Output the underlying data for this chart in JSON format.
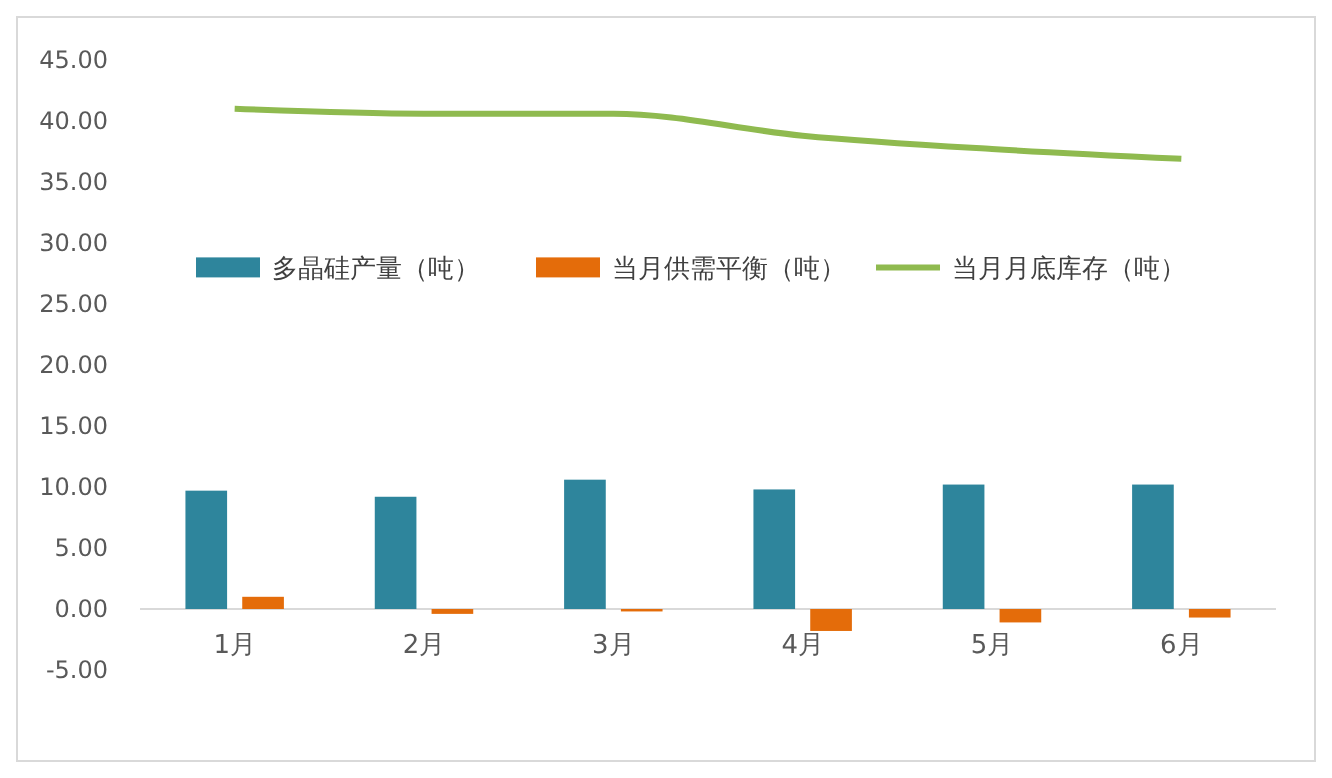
{
  "chart_data": {
    "type": "bar",
    "categories": [
      "1月",
      "2月",
      "3月",
      "4月",
      "5月",
      "6月"
    ],
    "series": [
      {
        "name": "多晶硅产量（吨）",
        "color": "#2e859c",
        "values": [
          9.7,
          9.2,
          10.6,
          9.8,
          10.2,
          10.2
        ]
      },
      {
        "name": "当月供需平衡（吨）",
        "color": "#e46c0a",
        "values": [
          1.0,
          -0.4,
          -0.2,
          -1.8,
          -1.1,
          -0.7
        ]
      },
      {
        "name": "当月月底库存（吨）",
        "type": "line",
        "color": "#8fba4f",
        "values": [
          41.0,
          40.6,
          40.6,
          38.8,
          37.7,
          36.9
        ]
      }
    ],
    "ylim": [
      -5,
      45
    ],
    "yticks": [
      {
        "value": -5,
        "label": "-5.00"
      },
      {
        "value": 0,
        "label": "0.00"
      },
      {
        "value": 5,
        "label": "5.00"
      },
      {
        "value": 10,
        "label": "10.00"
      },
      {
        "value": 15,
        "label": "15.00"
      },
      {
        "value": 20,
        "label": "20.00"
      },
      {
        "value": 25,
        "label": "25.00"
      },
      {
        "value": 30,
        "label": "30.00"
      },
      {
        "value": 35,
        "label": "35.00"
      },
      {
        "value": 40,
        "label": "40.00"
      },
      {
        "value": 45,
        "label": "45.00"
      }
    ],
    "legend": "top",
    "marker": "none"
  }
}
